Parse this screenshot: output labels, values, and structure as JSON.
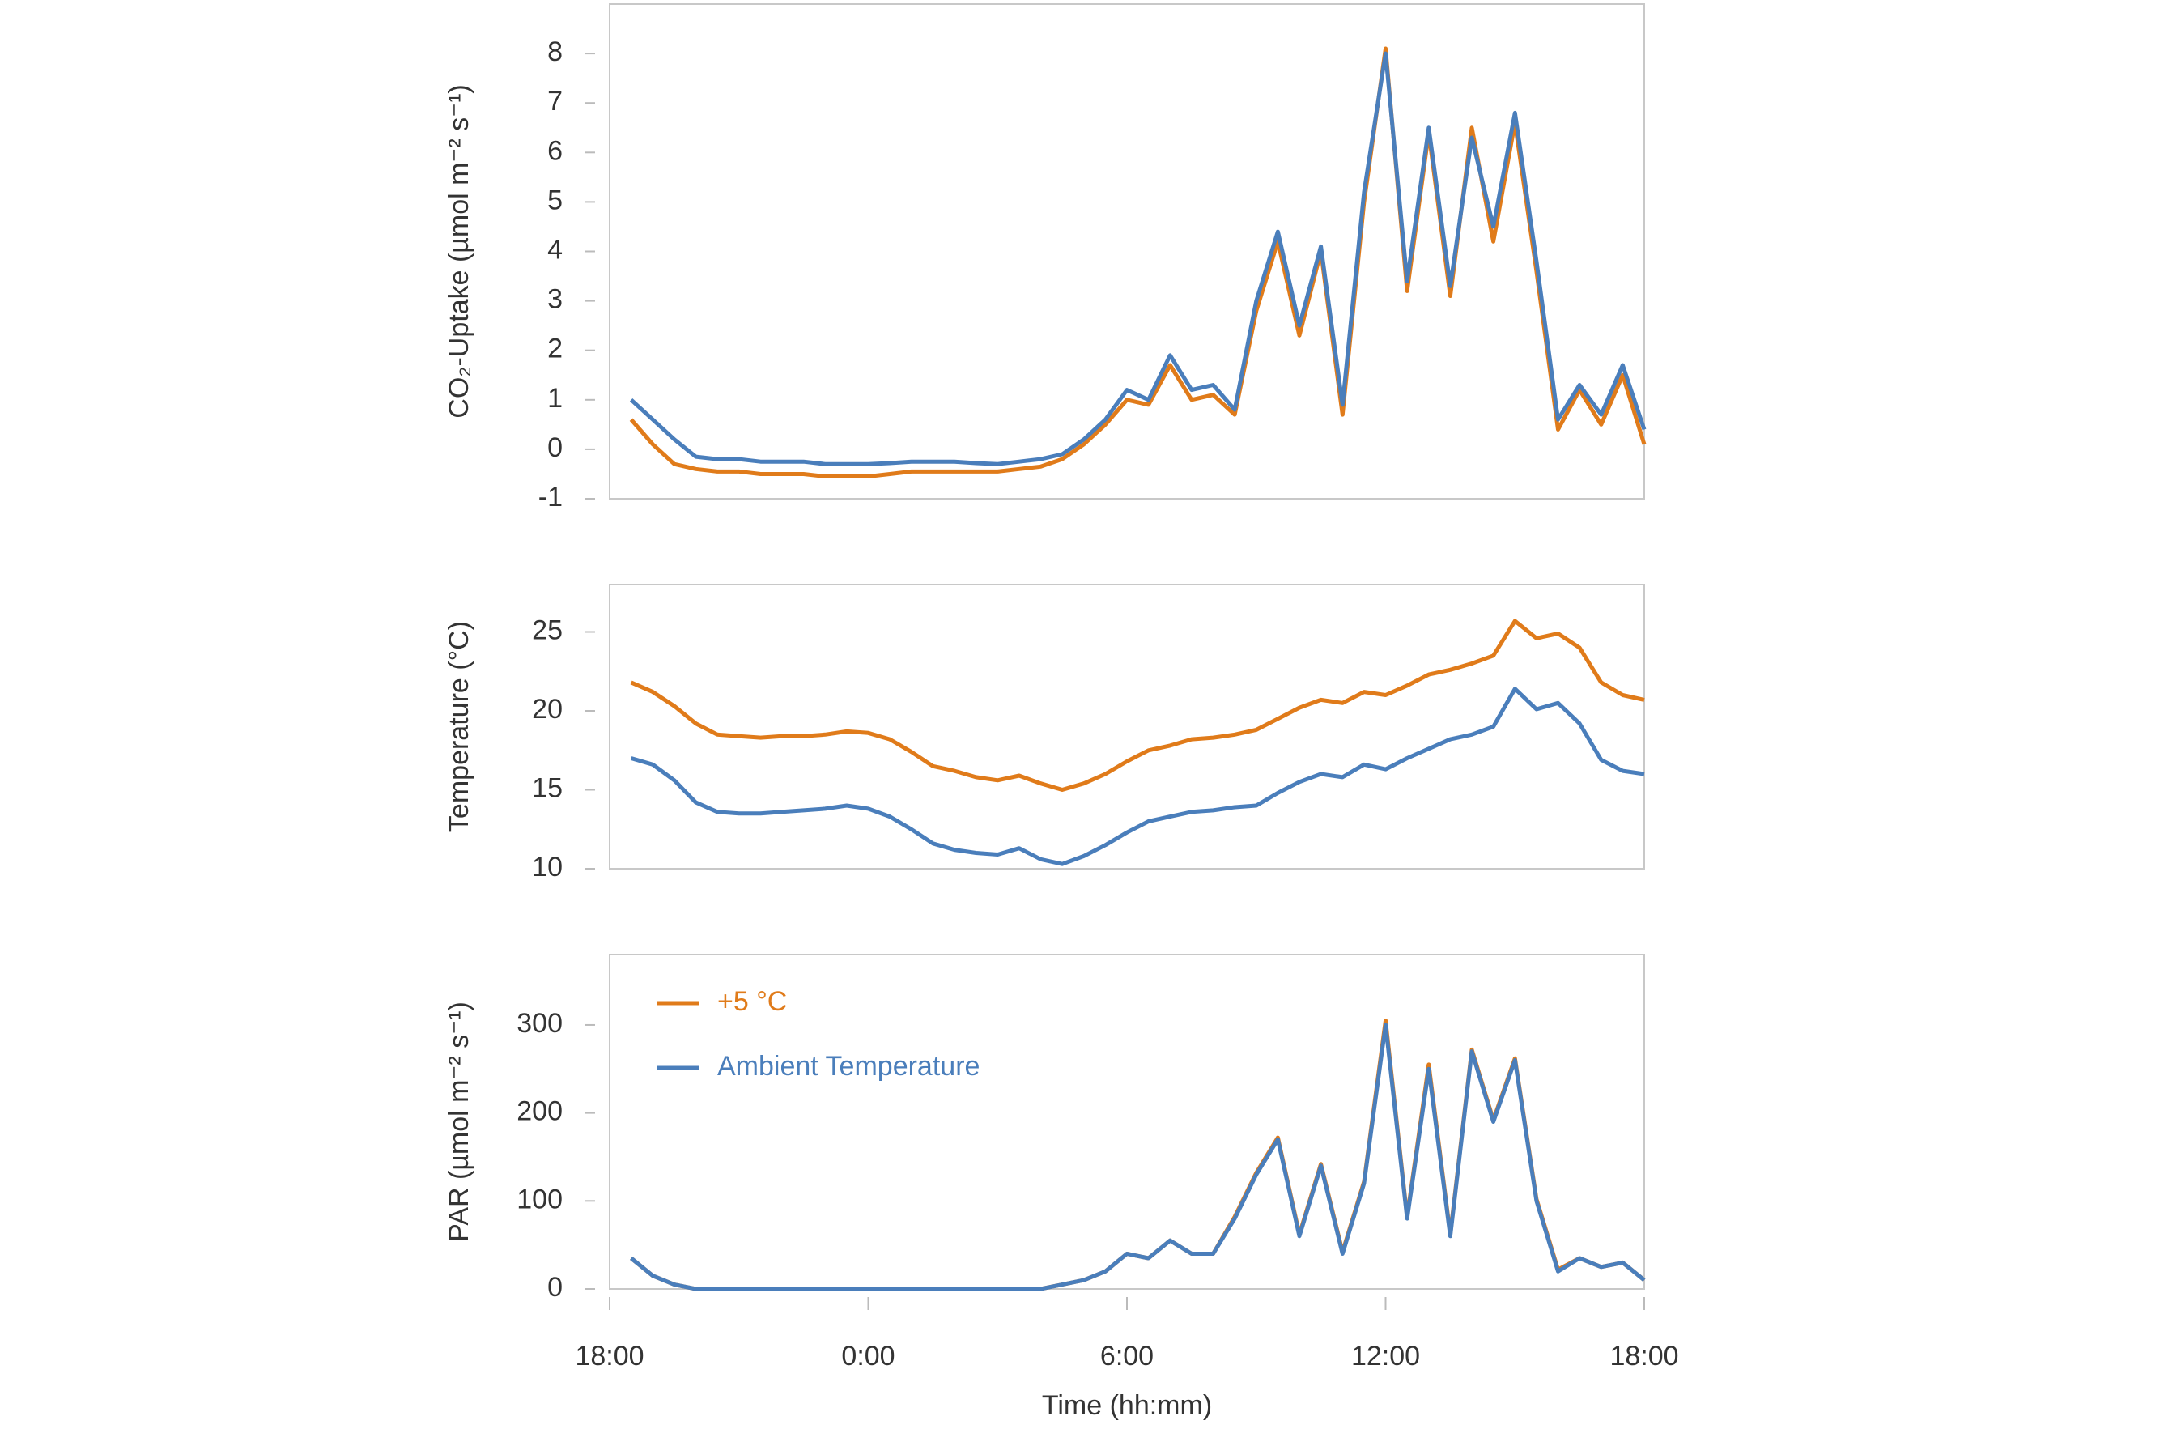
{
  "chart_data": [
    {
      "type": "line",
      "ylabel": "CO₂-Uptake (µmol m⁻² s⁻¹)",
      "x": [
        0.5,
        1,
        1.5,
        2,
        2.5,
        3,
        3.5,
        4,
        4.5,
        5,
        5.5,
        6,
        6.5,
        7,
        7.5,
        8,
        8.5,
        9,
        9.5,
        10,
        10.5,
        11,
        11.5,
        12,
        12.5,
        13,
        13.5,
        14,
        14.5,
        15,
        15.5,
        16,
        16.5,
        17,
        17.5,
        18,
        18.5,
        19,
        19.5,
        20,
        20.5,
        21,
        21.5,
        22,
        22.5,
        23,
        23.5,
        24
      ],
      "xlim": [
        0,
        24
      ],
      "ylim": [
        -1,
        9
      ],
      "yticks": [
        -1,
        0,
        1,
        2,
        3,
        4,
        5,
        6,
        7,
        8
      ],
      "series": [
        {
          "name": "+5 °C",
          "color": "#e07b1a",
          "values": [
            0.6,
            0.1,
            -0.3,
            -0.4,
            -0.45,
            -0.45,
            -0.5,
            -0.5,
            -0.5,
            -0.55,
            -0.55,
            -0.55,
            -0.5,
            -0.45,
            -0.45,
            -0.45,
            -0.45,
            -0.45,
            -0.4,
            -0.35,
            -0.2,
            0.1,
            0.5,
            1.0,
            0.9,
            1.7,
            1.0,
            1.1,
            0.7,
            2.8,
            4.2,
            2.3,
            4.0,
            0.7,
            5.0,
            8.1,
            3.2,
            6.4,
            3.1,
            6.5,
            4.2,
            6.6,
            3.6,
            0.4,
            1.2,
            0.5,
            1.5,
            0.1
          ]
        },
        {
          "name": "Ambient Temperature",
          "color": "#4a7ebb",
          "values": [
            1.0,
            0.6,
            0.2,
            -0.15,
            -0.2,
            -0.2,
            -0.25,
            -0.25,
            -0.25,
            -0.3,
            -0.3,
            -0.3,
            -0.28,
            -0.25,
            -0.25,
            -0.25,
            -0.28,
            -0.3,
            -0.25,
            -0.2,
            -0.1,
            0.2,
            0.6,
            1.2,
            1.0,
            1.9,
            1.2,
            1.3,
            0.8,
            3.0,
            4.4,
            2.5,
            4.1,
            0.9,
            5.2,
            8.0,
            3.4,
            6.5,
            3.3,
            6.3,
            4.5,
            6.8,
            3.8,
            0.6,
            1.3,
            0.7,
            1.7,
            0.4
          ]
        }
      ]
    },
    {
      "type": "line",
      "ylabel": "Temperature (°C)",
      "x": [
        0.5,
        1,
        1.5,
        2,
        2.5,
        3,
        3.5,
        4,
        4.5,
        5,
        5.5,
        6,
        6.5,
        7,
        7.5,
        8,
        8.5,
        9,
        9.5,
        10,
        10.5,
        11,
        11.5,
        12,
        12.5,
        13,
        13.5,
        14,
        14.5,
        15,
        15.5,
        16,
        16.5,
        17,
        17.5,
        18,
        18.5,
        19,
        19.5,
        20,
        20.5,
        21,
        21.5,
        22,
        22.5,
        23,
        23.5,
        24
      ],
      "xlim": [
        0,
        24
      ],
      "ylim": [
        10,
        28
      ],
      "yticks": [
        10,
        15,
        20,
        25
      ],
      "series": [
        {
          "name": "+5 °C",
          "color": "#e07b1a",
          "values": [
            21.8,
            21.2,
            20.3,
            19.2,
            18.5,
            18.4,
            18.3,
            18.4,
            18.4,
            18.5,
            18.7,
            18.6,
            18.2,
            17.4,
            16.5,
            16.2,
            15.8,
            15.6,
            15.9,
            15.4,
            15.0,
            15.4,
            16.0,
            16.8,
            17.5,
            17.8,
            18.2,
            18.3,
            18.5,
            18.8,
            19.5,
            20.2,
            20.7,
            20.5,
            21.2,
            21.0,
            21.6,
            22.3,
            22.6,
            23.0,
            23.5,
            25.7,
            24.6,
            24.9,
            24.0,
            21.8,
            21.0,
            20.7
          ]
        },
        {
          "name": "Ambient Temperature",
          "color": "#4a7ebb",
          "values": [
            17.0,
            16.6,
            15.6,
            14.2,
            13.6,
            13.5,
            13.5,
            13.6,
            13.7,
            13.8,
            14.0,
            13.8,
            13.3,
            12.5,
            11.6,
            11.2,
            11.0,
            10.9,
            11.3,
            10.6,
            10.3,
            10.8,
            11.5,
            12.3,
            13.0,
            13.3,
            13.6,
            13.7,
            13.9,
            14.0,
            14.8,
            15.5,
            16.0,
            15.8,
            16.6,
            16.3,
            17.0,
            17.6,
            18.2,
            18.5,
            19.0,
            21.4,
            20.1,
            20.5,
            19.2,
            16.9,
            16.2,
            16.0
          ]
        }
      ]
    },
    {
      "type": "line",
      "ylabel": "PAR (µmol m⁻² s⁻¹)",
      "xlabel": "Time (hh:mm)",
      "legend": "upper left",
      "x": [
        0.5,
        1,
        1.5,
        2,
        2.5,
        3,
        3.5,
        4,
        4.5,
        5,
        5.5,
        6,
        6.5,
        7,
        7.5,
        8,
        8.5,
        9,
        9.5,
        10,
        10.5,
        11,
        11.5,
        12,
        12.5,
        13,
        13.5,
        14,
        14.5,
        15,
        15.5,
        16,
        16.5,
        17,
        17.5,
        18,
        18.5,
        19,
        19.5,
        20,
        20.5,
        21,
        21.5,
        22,
        22.5,
        23,
        23.5,
        24
      ],
      "xlim": [
        0,
        24
      ],
      "ylim": [
        0,
        380
      ],
      "yticks": [
        0,
        100,
        200,
        300
      ],
      "xticks": [
        {
          "value": 0,
          "label": "18:00"
        },
        {
          "value": 6,
          "label": "0:00"
        },
        {
          "value": 12,
          "label": "6:00"
        },
        {
          "value": 18,
          "label": "12:00"
        },
        {
          "value": 24,
          "label": "18:00"
        }
      ],
      "series": [
        {
          "name": "+5 °C",
          "color": "#e07b1a",
          "values": [
            35,
            15,
            5,
            0,
            0,
            0,
            0,
            0,
            0,
            0,
            0,
            0,
            0,
            0,
            0,
            0,
            0,
            0,
            0,
            0,
            5,
            10,
            20,
            40,
            35,
            55,
            40,
            40,
            82,
            132,
            172,
            62,
            142,
            42,
            122,
            305,
            82,
            255,
            62,
            272,
            192,
            262,
            102,
            22,
            35,
            25,
            30,
            10
          ]
        },
        {
          "name": "Ambient Temperature",
          "color": "#4a7ebb",
          "values": [
            35,
            15,
            5,
            0,
            0,
            0,
            0,
            0,
            0,
            0,
            0,
            0,
            0,
            0,
            0,
            0,
            0,
            0,
            0,
            0,
            5,
            10,
            20,
            40,
            35,
            55,
            40,
            40,
            80,
            130,
            170,
            60,
            140,
            40,
            120,
            300,
            80,
            250,
            60,
            270,
            190,
            260,
            100,
            20,
            35,
            25,
            30,
            10
          ]
        }
      ]
    }
  ]
}
